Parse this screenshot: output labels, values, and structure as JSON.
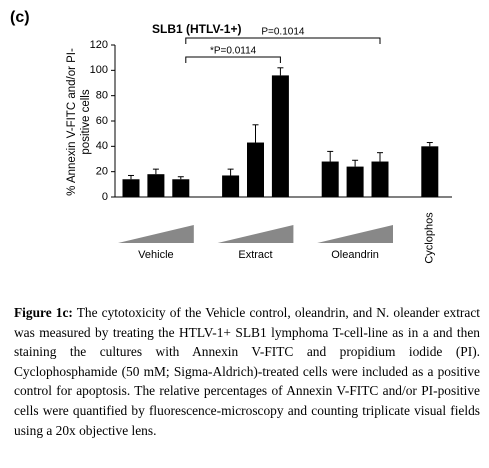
{
  "chart_data": {
    "type": "grouped-bar",
    "panel_label": "(c)",
    "title": "SLB1 (HTLV-1+)",
    "y_label": [
      "% Annexin V-FITC and/or PI-",
      "positive cells"
    ],
    "color": "#000000",
    "ylim": [
      0,
      120
    ],
    "yticks": [
      0,
      20,
      40,
      60,
      80,
      100,
      120
    ],
    "groups": [
      {
        "name": "Vehicle",
        "values": [
          14,
          18,
          14
        ],
        "errors": [
          3,
          4,
          2
        ]
      },
      {
        "name": "Extract",
        "values": [
          17,
          43,
          96
        ],
        "errors": [
          5,
          14,
          6
        ]
      },
      {
        "name": "Oleandrin",
        "values": [
          28,
          24,
          28
        ],
        "errors": [
          8,
          5,
          7
        ]
      },
      {
        "name": "Cyclophos",
        "values": [
          40
        ],
        "errors": [
          3
        ]
      }
    ],
    "annotations": [
      "*P=0.0114",
      "P=0.1014"
    ]
  },
  "caption": {
    "label": "Figure 1c:",
    "text": "The cytotoxicity of the Vehicle control, oleandrin, and N. oleander extract was measured by treating the HTLV-1+ SLB1 lymphoma T-cell-line as in a and then staining the cultures with Annexin V-FITC and propidium iodide (PI). Cyclophosphamide (50 mM; Sigma-Aldrich)-treated cells were included as a positive control for apoptosis. The relative percentages of Annexin V-FITC and/or PI-positive cells were quantified by fluorescence-microscopy and counting triplicate visual fields using a 20x objective lens."
  }
}
